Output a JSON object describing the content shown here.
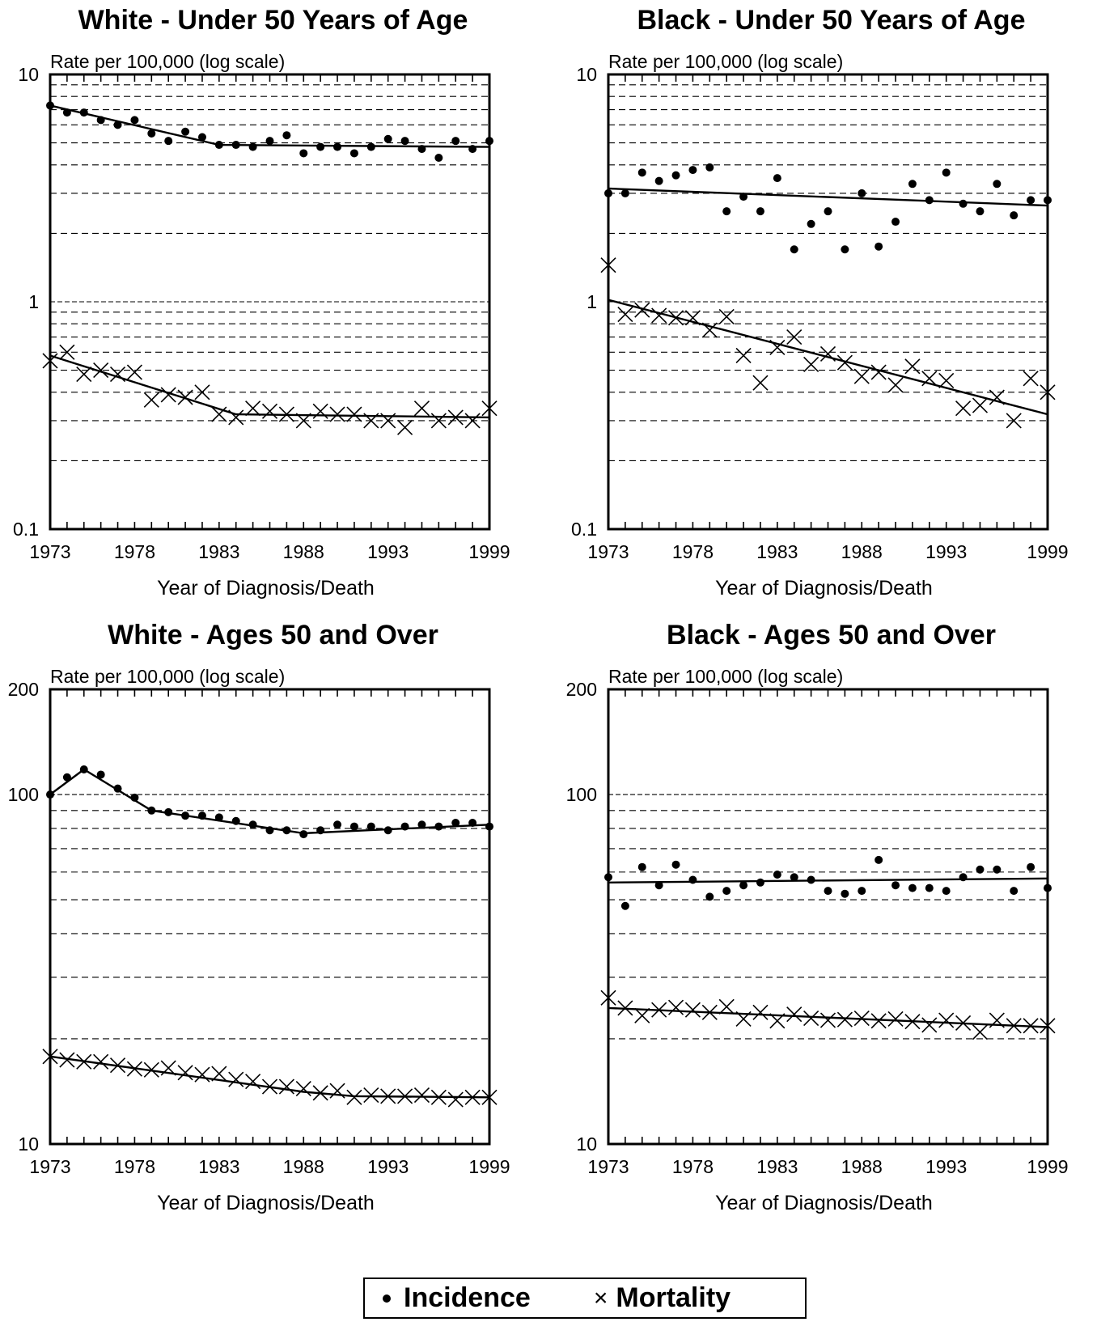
{
  "chart_data": [
    {
      "type": "scatter",
      "title": "White - Under 50 Years of Age",
      "ylabel": "Rate per 100,000 (log scale)",
      "xlabel": "Year of Diagnosis/Death",
      "yscale": "log",
      "xlim": [
        1973,
        1999
      ],
      "ylim": [
        0.1,
        10
      ],
      "xticks": [
        "1973",
        "1978",
        "1983",
        "1988",
        "1993",
        "1999"
      ],
      "yticks": [
        "0.1",
        "1",
        "10"
      ],
      "grid": "horizontal dashed",
      "x": [
        1973,
        1974,
        1975,
        1976,
        1977,
        1978,
        1979,
        1980,
        1981,
        1982,
        1983,
        1984,
        1985,
        1986,
        1987,
        1988,
        1989,
        1990,
        1991,
        1992,
        1993,
        1994,
        1995,
        1996,
        1997,
        1998,
        1999
      ],
      "series": [
        {
          "name": "Incidence",
          "marker": "dot",
          "values": [
            7.3,
            6.8,
            6.8,
            6.3,
            6.0,
            6.3,
            5.5,
            5.1,
            5.6,
            5.3,
            4.9,
            4.9,
            4.8,
            5.1,
            5.4,
            4.5,
            4.8,
            4.8,
            4.5,
            4.8,
            5.2,
            5.1,
            4.7,
            4.3,
            5.1,
            4.7,
            5.1
          ],
          "trend": [
            [
              1973,
              7.3
            ],
            [
              1983,
              4.9
            ],
            [
              1999,
              4.8
            ]
          ]
        },
        {
          "name": "Mortality",
          "marker": "x",
          "values": [
            0.55,
            0.6,
            0.48,
            0.5,
            0.48,
            0.49,
            0.37,
            0.39,
            0.38,
            0.4,
            0.32,
            0.31,
            0.34,
            0.33,
            0.32,
            0.3,
            0.33,
            0.32,
            0.32,
            0.3,
            0.3,
            0.28,
            0.34,
            0.3,
            0.31,
            0.3,
            0.34
          ],
          "trend": [
            [
              1973,
              0.58
            ],
            [
              1984,
              0.32
            ],
            [
              1999,
              0.31
            ]
          ]
        }
      ]
    },
    {
      "type": "scatter",
      "title": "Black - Under 50 Years of Age",
      "ylabel": "Rate per 100,000 (log scale)",
      "xlabel": "Year of Diagnosis/Death",
      "yscale": "log",
      "xlim": [
        1973,
        1999
      ],
      "ylim": [
        0.1,
        10
      ],
      "xticks": [
        "1973",
        "1978",
        "1983",
        "1988",
        "1993",
        "1999"
      ],
      "yticks": [
        "0.1",
        "1",
        "10"
      ],
      "grid": "horizontal dashed",
      "x": [
        1973,
        1974,
        1975,
        1976,
        1977,
        1978,
        1979,
        1980,
        1981,
        1982,
        1983,
        1984,
        1985,
        1986,
        1987,
        1988,
        1989,
        1990,
        1991,
        1992,
        1993,
        1994,
        1995,
        1996,
        1997,
        1998,
        1999
      ],
      "series": [
        {
          "name": "Incidence",
          "marker": "dot",
          "values": [
            3.0,
            3.0,
            3.7,
            3.4,
            3.6,
            3.8,
            3.9,
            2.5,
            2.9,
            2.5,
            3.5,
            1.7,
            2.2,
            2.5,
            1.7,
            3.0,
            1.75,
            2.25,
            3.3,
            2.8,
            3.7,
            2.7,
            2.5,
            3.3,
            2.4,
            2.8,
            2.8
          ],
          "trend": [
            [
              1973,
              3.15
            ],
            [
              1999,
              2.65
            ]
          ]
        },
        {
          "name": "Mortality",
          "marker": "x",
          "values": [
            1.45,
            0.88,
            0.92,
            0.87,
            0.85,
            0.85,
            0.75,
            0.86,
            0.58,
            0.44,
            0.63,
            0.7,
            0.53,
            0.59,
            0.54,
            0.47,
            0.49,
            0.43,
            0.52,
            0.46,
            0.45,
            0.34,
            0.35,
            0.38,
            0.3,
            0.46,
            0.4
          ],
          "trend": [
            [
              1973,
              1.02
            ],
            [
              1999,
              0.32
            ]
          ]
        }
      ]
    },
    {
      "type": "scatter",
      "title": "White - Ages 50 and Over",
      "ylabel": "Rate per 100,000 (log scale)",
      "xlabel": "Year of Diagnosis/Death",
      "yscale": "log",
      "xlim": [
        1973,
        1999
      ],
      "ylim": [
        10,
        200
      ],
      "xticks": [
        "1973",
        "1978",
        "1983",
        "1988",
        "1993",
        "1999"
      ],
      "yticks": [
        "10",
        "100",
        "200"
      ],
      "grid": "horizontal dashed",
      "x": [
        1973,
        1974,
        1975,
        1976,
        1977,
        1978,
        1979,
        1980,
        1981,
        1982,
        1983,
        1984,
        1985,
        1986,
        1987,
        1988,
        1989,
        1990,
        1991,
        1992,
        1993,
        1994,
        1995,
        1996,
        1997,
        1998,
        1999
      ],
      "series": [
        {
          "name": "Incidence",
          "marker": "dot",
          "values": [
            100,
            112,
            118,
            114,
            104,
            98,
            90,
            89,
            87,
            87,
            86,
            84,
            82,
            79,
            79,
            77,
            79,
            82,
            81,
            81,
            79,
            81,
            82,
            81,
            83,
            83,
            81
          ],
          "trend": [
            [
              1973,
              100
            ],
            [
              1975,
              118
            ],
            [
              1979,
              90
            ],
            [
              1988,
              77.5
            ],
            [
              1999,
              82
            ]
          ]
        },
        {
          "name": "Mortality",
          "marker": "x",
          "values": [
            17.8,
            17.4,
            17.2,
            17.2,
            16.8,
            16.4,
            16.3,
            16.5,
            16.0,
            15.8,
            15.9,
            15.3,
            15.1,
            14.6,
            14.6,
            14.4,
            14.0,
            14.2,
            13.6,
            13.8,
            13.7,
            13.7,
            13.8,
            13.6,
            13.4,
            13.6,
            13.6
          ],
          "trend": [
            [
              1973,
              17.8
            ],
            [
              1988,
              14.1
            ],
            [
              1991,
              13.7
            ],
            [
              1999,
              13.6
            ]
          ]
        }
      ]
    },
    {
      "type": "scatter",
      "title": "Black - Ages 50 and Over",
      "ylabel": "Rate per 100,000 (log scale)",
      "xlabel": "Year of Diagnosis/Death",
      "yscale": "log",
      "xlim": [
        1973,
        1999
      ],
      "ylim": [
        10,
        200
      ],
      "xticks": [
        "1973",
        "1978",
        "1983",
        "1988",
        "1993",
        "1999"
      ],
      "yticks": [
        "10",
        "100",
        "200"
      ],
      "grid": "horizontal dashed",
      "x": [
        1973,
        1974,
        1975,
        1976,
        1977,
        1978,
        1979,
        1980,
        1981,
        1982,
        1983,
        1984,
        1985,
        1986,
        1987,
        1988,
        1989,
        1990,
        1991,
        1992,
        1993,
        1994,
        1995,
        1996,
        1997,
        1998,
        1999
      ],
      "series": [
        {
          "name": "Incidence",
          "marker": "dot",
          "values": [
            58,
            48,
            62,
            55,
            63,
            57,
            51,
            53,
            55,
            56,
            59,
            58,
            57,
            53,
            52,
            53,
            65,
            55,
            54,
            54,
            53,
            58,
            61,
            61,
            53,
            62,
            54
          ],
          "trend": [
            [
              1973,
              56
            ],
            [
              1999,
              57.5
            ]
          ]
        },
        {
          "name": "Mortality",
          "marker": "x",
          "values": [
            26.2,
            24.5,
            23.3,
            24.2,
            24.6,
            24.2,
            23.8,
            24.7,
            22.8,
            23.8,
            22.5,
            23.5,
            22.9,
            22.6,
            22.7,
            22.9,
            22.5,
            22.8,
            22.4,
            21.9,
            22.6,
            22.2,
            20.9,
            22.6,
            21.8,
            21.8,
            21.8
          ],
          "trend": [
            [
              1973,
              24.5
            ],
            [
              1999,
              21.6
            ]
          ]
        }
      ]
    }
  ],
  "legend": {
    "incidence_label": "Incidence",
    "mortality_label": "Mortality",
    "mortality_symbol": "×"
  }
}
